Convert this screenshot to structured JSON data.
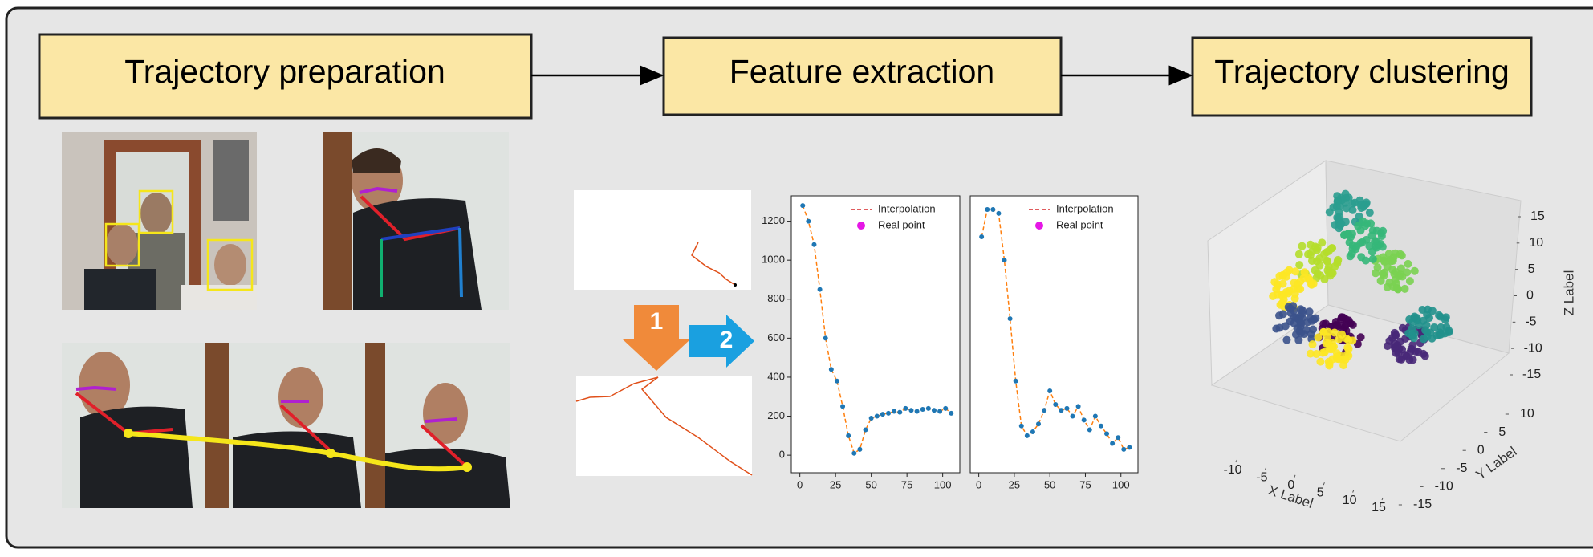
{
  "steps": [
    {
      "label": "Trajectory preparation"
    },
    {
      "label": "Feature extraction"
    },
    {
      "label": "Trajectory clustering"
    }
  ],
  "arrow_badges": [
    "1",
    "2"
  ],
  "charts": [
    {
      "type": "line",
      "x": [
        2,
        6,
        10,
        14,
        18,
        22,
        26,
        30,
        34,
        38,
        42,
        46,
        50,
        54,
        58,
        62,
        66,
        70,
        74,
        78,
        82,
        86,
        90,
        94,
        98,
        102,
        106
      ],
      "xlim": [
        -6,
        112
      ],
      "ylim": [
        -90,
        1330
      ],
      "xticks": [
        0,
        25,
        50,
        75,
        100
      ],
      "yticks": [
        0,
        200,
        400,
        600,
        800,
        1000,
        1200
      ],
      "series": [
        {
          "name": "Interpolation",
          "color": "#ff7f0e",
          "legend_color": "#d62728",
          "values": [
            1280,
            1200,
            1080,
            850,
            600,
            440,
            380,
            250,
            100,
            10,
            30,
            130,
            190,
            200,
            210,
            215,
            225,
            220,
            240,
            230,
            225,
            235,
            240,
            230,
            225,
            240,
            215
          ]
        },
        {
          "name": "Real point",
          "color": "#1f77b4",
          "legend_color": "#e617e6",
          "values": [
            1280,
            1200,
            1080,
            850,
            600,
            440,
            380,
            250,
            100,
            10,
            30,
            130,
            190,
            200,
            210,
            215,
            225,
            220,
            240,
            230,
            225,
            235,
            240,
            230,
            225,
            240,
            215
          ]
        }
      ]
    },
    {
      "type": "line",
      "x": [
        2,
        6,
        10,
        14,
        18,
        22,
        26,
        30,
        34,
        38,
        42,
        46,
        50,
        54,
        58,
        62,
        66,
        70,
        74,
        78,
        82,
        86,
        90,
        94,
        98,
        102,
        106
      ],
      "xlim": [
        -6,
        112
      ],
      "ylim": [
        -90,
        1330
      ],
      "xticks": [
        0,
        25,
        50,
        75,
        100
      ],
      "series": [
        {
          "name": "Interpolation",
          "color": "#ff7f0e",
          "legend_color": "#d62728",
          "values": [
            1120,
            1260,
            1260,
            1240,
            1000,
            700,
            380,
            150,
            100,
            120,
            160,
            230,
            330,
            260,
            230,
            240,
            200,
            250,
            180,
            130,
            200,
            150,
            110,
            60,
            90,
            30,
            40
          ]
        },
        {
          "name": "Real point",
          "color": "#1f77b4",
          "legend_color": "#e617e6",
          "values": [
            1120,
            1260,
            1260,
            1240,
            1000,
            700,
            380,
            150,
            100,
            120,
            160,
            230,
            330,
            260,
            230,
            240,
            200,
            250,
            180,
            130,
            200,
            150,
            110,
            60,
            90,
            30,
            40
          ]
        }
      ]
    }
  ],
  "plot3d": {
    "x_label": "X Label",
    "y_label": "Y Label",
    "z_label": "Z Label",
    "xticks": [
      -10,
      -5,
      0,
      5,
      10,
      15
    ],
    "yticks": [
      10,
      5,
      0,
      -5,
      -10,
      -15
    ],
    "zticks": [
      15,
      10,
      5,
      0,
      -5,
      -10,
      -15
    ]
  }
}
